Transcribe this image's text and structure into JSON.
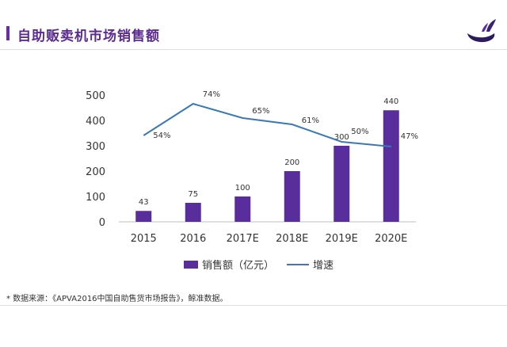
{
  "page": {
    "title": "自助贩卖机市场销售额",
    "footnote": "* 数据来源：《APVA2016中国自助售货市场报告》，鲸准数据。"
  },
  "colors": {
    "accent": "#5b2b91",
    "bar": "#5a2d9c",
    "line": "#3a78b8"
  },
  "chart_data": {
    "type": "bar",
    "categories": [
      "2015",
      "2016",
      "2017E",
      "2018E",
      "2019E",
      "2020E"
    ],
    "ylim": [
      0,
      500
    ],
    "yticks": [
      0,
      100,
      200,
      300,
      400,
      500
    ],
    "legend_position": "bottom",
    "grid": false,
    "series": [
      {
        "name": "销售额（亿元）",
        "type": "bar",
        "values": [
          43,
          75,
          100,
          200,
          300,
          440
        ],
        "labels": [
          "43",
          "75",
          "100",
          "200",
          "300",
          "440"
        ]
      },
      {
        "name": "增速",
        "type": "line",
        "values": [
          54,
          74,
          65,
          61,
          50,
          47
        ],
        "labels": [
          "54%",
          "74%",
          "65%",
          "61%",
          "50%",
          "47%"
        ]
      }
    ]
  }
}
